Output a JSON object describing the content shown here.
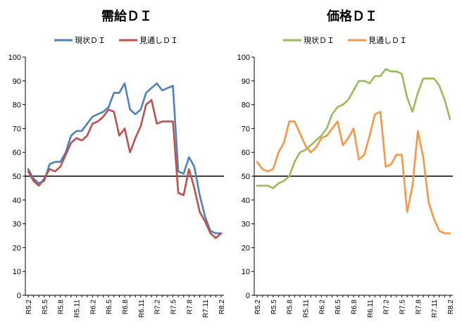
{
  "chart_data": [
    {
      "type": "line",
      "title": "需給ＤＩ",
      "xlabel": "",
      "ylabel": "",
      "ylim": [
        0,
        100
      ],
      "y_ticks": [
        "0",
        "10",
        "20",
        "30",
        "40",
        "50",
        "60",
        "70",
        "80",
        "90",
        "100"
      ],
      "grid": false,
      "legend": "top",
      "reference_line": 50,
      "categories": [
        "R5.2",
        "R5.3",
        "R5.4",
        "R5.5",
        "R5.6",
        "R5.7",
        "R5.8",
        "R5.9",
        "R5.10",
        "R5.11",
        "R5.12",
        "R6.1",
        "R6.2",
        "R6.3",
        "R6.4",
        "R6.5",
        "R6.6",
        "R6.7",
        "R6.8",
        "R6.9",
        "R6.10",
        "R6.11",
        "R6.12",
        "R7.1",
        "R7.2",
        "R7.3",
        "R7.4",
        "R7.5",
        "R7.6",
        "R7.7",
        "R7.8",
        "R7.9",
        "R7.10",
        "R7.11",
        "R7.12",
        "R8.1",
        "R8.2"
      ],
      "tick_labels": [
        "R5.2",
        "R5.5",
        "R5.8",
        "R5.11",
        "R6.2",
        "R6.5",
        "R6.8",
        "R6.11",
        "R7.2",
        "R7.5",
        "R7.8",
        "R7.11",
        "R8.2"
      ],
      "series": [
        {
          "name": "現状ＤＩ",
          "color": "#4f81bd",
          "values": [
            53,
            49,
            47,
            48,
            55,
            56,
            56,
            60,
            67,
            69,
            69,
            72,
            75,
            76,
            77,
            79,
            85,
            85,
            89,
            78,
            76,
            78,
            85,
            87,
            89,
            86,
            87,
            88,
            52,
            51,
            58,
            54,
            42,
            33,
            27,
            26,
            26
          ]
        },
        {
          "name": "見通しＤＩ",
          "color": "#c0504d",
          "values": [
            52,
            48,
            46,
            49,
            53,
            52,
            54,
            59,
            64,
            66,
            65,
            67,
            72,
            73,
            75,
            78,
            77,
            67,
            70,
            60,
            66,
            71,
            80,
            82,
            72,
            73,
            73,
            73,
            43,
            42,
            53,
            45,
            35,
            31,
            26,
            24,
            26
          ]
        }
      ]
    },
    {
      "type": "line",
      "title": "価格ＤＩ",
      "xlabel": "",
      "ylabel": "",
      "ylim": [
        0,
        100
      ],
      "y_ticks": [
        "0",
        "10",
        "20",
        "30",
        "40",
        "50",
        "60",
        "70",
        "80",
        "90",
        "100"
      ],
      "grid": false,
      "legend": "top",
      "reference_line": 50,
      "categories": [
        "R5.2",
        "R5.3",
        "R5.4",
        "R5.5",
        "R5.6",
        "R5.7",
        "R5.8",
        "R5.9",
        "R5.10",
        "R5.11",
        "R5.12",
        "R6.1",
        "R6.2",
        "R6.3",
        "R6.4",
        "R6.5",
        "R6.6",
        "R6.7",
        "R6.8",
        "R6.9",
        "R6.10",
        "R6.11",
        "R6.12",
        "R7.1",
        "R7.2",
        "R7.3",
        "R7.4",
        "R7.5",
        "R7.6",
        "R7.7",
        "R7.8",
        "R7.9",
        "R7.10",
        "R7.11",
        "R7.12",
        "R8.1",
        "R8.2"
      ],
      "tick_labels": [
        "R5.2",
        "R5.5",
        "R5.8",
        "R5.11",
        "R6.2",
        "R6.5",
        "R6.8",
        "R6.11",
        "R7.2",
        "R7.5",
        "R7.8",
        "R7.11",
        "R8.2"
      ],
      "series": [
        {
          "name": "現状ＤＩ",
          "color": "#9bbb59",
          "values": [
            46,
            46,
            46,
            45,
            47,
            48,
            50,
            56,
            60,
            61,
            63,
            65,
            67,
            70,
            76,
            79,
            80,
            82,
            86,
            90,
            90,
            89,
            92,
            92,
            95,
            94,
            94,
            93,
            83,
            77,
            85,
            91,
            91,
            91,
            88,
            82,
            74
          ]
        },
        {
          "name": "見通しＤＩ",
          "color": "#f79646",
          "values": [
            56,
            53,
            52,
            53,
            60,
            64,
            73,
            73,
            68,
            63,
            60,
            62,
            66,
            67,
            70,
            73,
            63,
            66,
            70,
            57,
            59,
            67,
            76,
            77,
            54,
            55,
            59,
            59,
            35,
            46,
            69,
            58,
            39,
            32,
            27,
            26,
            26
          ]
        }
      ]
    }
  ]
}
